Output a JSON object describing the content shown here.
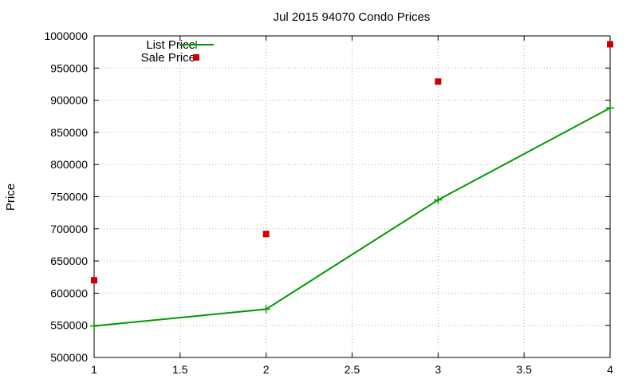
{
  "chart_data": {
    "type": "line",
    "title": "Jul 2015 94070 Condo Prices",
    "xlabel": "",
    "ylabel": "Price",
    "xlim": [
      1,
      4
    ],
    "ylim": [
      500000,
      1000000
    ],
    "x_ticks": [
      1,
      1.5,
      2,
      2.5,
      3,
      3.5,
      4
    ],
    "y_ticks": [
      500000,
      550000,
      600000,
      650000,
      700000,
      750000,
      800000,
      850000,
      900000,
      950000,
      1000000
    ],
    "grid": true,
    "legend_position": "top-left",
    "series": [
      {
        "name": "List Price",
        "style": "line-with-plus-markers",
        "color": "#009900",
        "x": [
          1,
          2,
          3,
          4
        ],
        "y": [
          549000,
          575000,
          745000,
          888000
        ]
      },
      {
        "name": "Sale Price",
        "style": "square-points",
        "color": "#cc0000",
        "x": [
          1,
          2,
          3,
          4
        ],
        "y": [
          620000,
          692000,
          929000,
          987000
        ]
      }
    ]
  }
}
